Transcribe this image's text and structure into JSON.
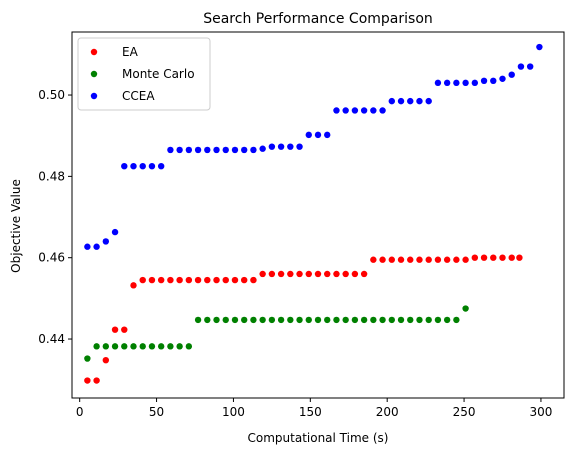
{
  "chart_data": {
    "type": "scatter",
    "title": "Search Performance Comparison",
    "xlabel": "Computational Time (s)",
    "ylabel": "Objective Value",
    "xlim": [
      -5,
      315
    ],
    "ylim": [
      0.4255,
      0.5155
    ],
    "xticks": [
      0,
      50,
      100,
      150,
      200,
      250,
      300
    ],
    "yticks": [
      0.44,
      0.46,
      0.48,
      0.5
    ],
    "ytick_labels": [
      "0.44",
      "0.46",
      "0.48",
      "0.50"
    ],
    "grid": false,
    "legend_position": "upper-left",
    "series": [
      {
        "name": "EA",
        "color": "#ff0000",
        "x": [
          5,
          11,
          17,
          23,
          29,
          35,
          41,
          47,
          53,
          59,
          65,
          71,
          77,
          83,
          89,
          95,
          101,
          107,
          113,
          119,
          125,
          131,
          137,
          143,
          149,
          155,
          161,
          167,
          173,
          179,
          185,
          191,
          197,
          203,
          209,
          215,
          221,
          227,
          233,
          239,
          245,
          251,
          257,
          263,
          269,
          275,
          281,
          286
        ],
        "y": [
          0.4298,
          0.4298,
          0.4348,
          0.4423,
          0.4423,
          0.4532,
          0.4545,
          0.4545,
          0.4545,
          0.4545,
          0.4545,
          0.4545,
          0.4545,
          0.4545,
          0.4545,
          0.4545,
          0.4545,
          0.4545,
          0.4545,
          0.456,
          0.456,
          0.456,
          0.456,
          0.456,
          0.456,
          0.456,
          0.456,
          0.456,
          0.456,
          0.456,
          0.456,
          0.4595,
          0.4595,
          0.4595,
          0.4595,
          0.4595,
          0.4595,
          0.4595,
          0.4595,
          0.4595,
          0.4595,
          0.4595,
          0.46,
          0.46,
          0.46,
          0.46,
          0.46,
          0.46
        ]
      },
      {
        "name": "Monte Carlo",
        "color": "#008000",
        "x": [
          5,
          11,
          17,
          23,
          29,
          35,
          41,
          47,
          53,
          59,
          65,
          71,
          77,
          83,
          89,
          95,
          101,
          107,
          113,
          119,
          125,
          131,
          137,
          143,
          149,
          155,
          161,
          167,
          173,
          179,
          185,
          191,
          197,
          203,
          209,
          215,
          221,
          227,
          233,
          239,
          245,
          251
        ],
        "y": [
          0.4352,
          0.4382,
          0.4382,
          0.4382,
          0.4382,
          0.4382,
          0.4382,
          0.4382,
          0.4382,
          0.4382,
          0.4382,
          0.4382,
          0.4447,
          0.4447,
          0.4447,
          0.4447,
          0.4447,
          0.4447,
          0.4447,
          0.4447,
          0.4447,
          0.4447,
          0.4447,
          0.4447,
          0.4447,
          0.4447,
          0.4447,
          0.4447,
          0.4447,
          0.4447,
          0.4447,
          0.4447,
          0.4447,
          0.4447,
          0.4447,
          0.4447,
          0.4447,
          0.4447,
          0.4447,
          0.4447,
          0.4447,
          0.4475
        ]
      },
      {
        "name": "CCEA",
        "color": "#0000ff",
        "x": [
          5,
          11,
          17,
          23,
          29,
          35,
          41,
          47,
          53,
          59,
          65,
          71,
          77,
          83,
          89,
          95,
          101,
          107,
          113,
          119,
          125,
          131,
          137,
          143,
          149,
          155,
          161,
          167,
          173,
          179,
          185,
          191,
          197,
          203,
          209,
          215,
          221,
          227,
          233,
          239,
          245,
          251,
          257,
          263,
          269,
          275,
          281,
          287,
          293,
          299
        ],
        "y": [
          0.4627,
          0.4627,
          0.464,
          0.4663,
          0.4825,
          0.4825,
          0.4825,
          0.4825,
          0.4825,
          0.4865,
          0.4865,
          0.4865,
          0.4865,
          0.4865,
          0.4865,
          0.4865,
          0.4865,
          0.4865,
          0.4865,
          0.4868,
          0.4873,
          0.4873,
          0.4873,
          0.4873,
          0.4902,
          0.4902,
          0.4902,
          0.4962,
          0.4962,
          0.4962,
          0.4962,
          0.4962,
          0.4962,
          0.4985,
          0.4985,
          0.4985,
          0.4985,
          0.4985,
          0.503,
          0.503,
          0.503,
          0.503,
          0.503,
          0.5035,
          0.5035,
          0.504,
          0.505,
          0.507,
          0.507,
          0.5118
        ]
      }
    ]
  }
}
